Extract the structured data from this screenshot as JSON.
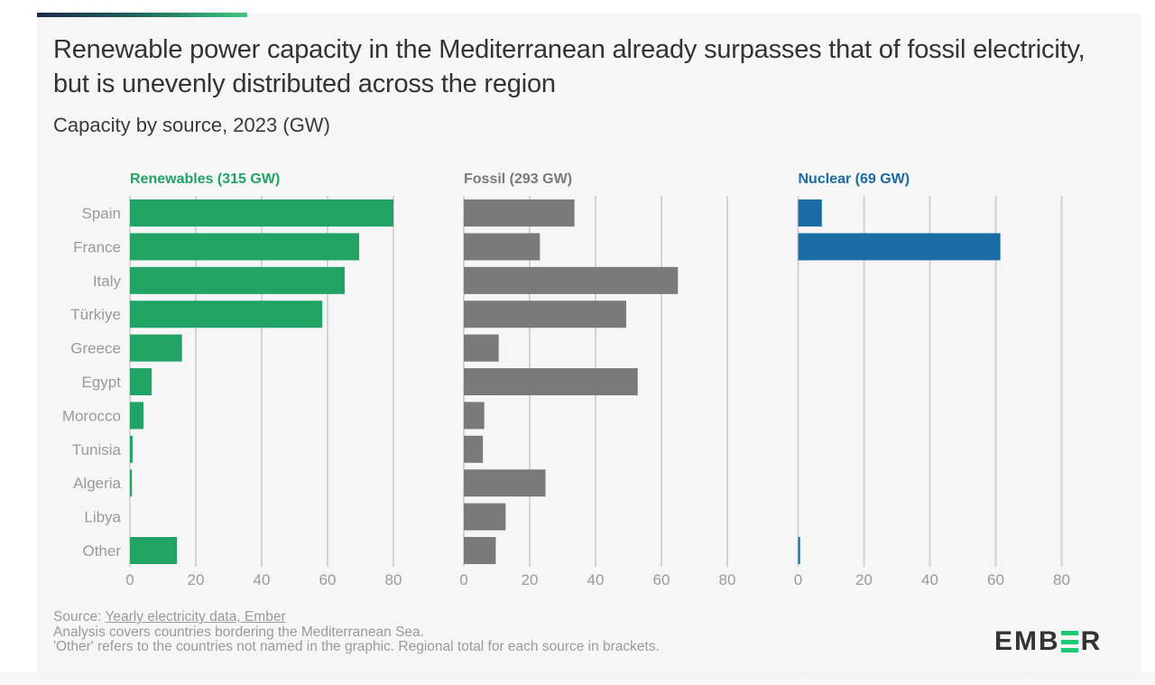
{
  "title": "Renewable power capacity in the Mediterranean already surpasses that of fossil electricity, but is unevenly distributed across the region",
  "subtitle": "Capacity by source, 2023 (GW)",
  "footer": {
    "source_prefix": "Source: ",
    "source_link": "Yearly electricity data, Ember",
    "note1": "Analysis covers countries bordering the Mediterranean Sea.",
    "note2": "'Other' refers to the countries not named in the graphic. Regional total for each source in brackets."
  },
  "logo": {
    "left": "EMB",
    "right": "R"
  },
  "colors": {
    "renewables": "#21a366",
    "fossil": "#7a7a7a",
    "nuclear": "#1a6ca4",
    "grid": "#d3d3d3",
    "label": "#9a9a9a"
  },
  "chart_data": {
    "type": "bar",
    "orientation": "horizontal",
    "title": "Renewable power capacity in the Mediterranean already surpasses that of fossil electricity, but is unevenly distributed across the region",
    "subtitle": "Capacity by source, 2023 (GW)",
    "categories": [
      "Spain",
      "France",
      "Italy",
      "Türkiye",
      "Greece",
      "Egypt",
      "Morocco",
      "Tunisia",
      "Algeria",
      "Libya",
      "Other"
    ],
    "xlim": [
      0,
      80
    ],
    "xticks": [
      0,
      20,
      40,
      60,
      80
    ],
    "grid": true,
    "series": [
      {
        "name": "Renewables (315 GW)",
        "color": "#21a366",
        "values": [
          80.0,
          69.6,
          65.2,
          58.4,
          15.8,
          6.6,
          4.1,
          0.8,
          0.6,
          0.0,
          14.3
        ]
      },
      {
        "name": "Fossil (293 GW)",
        "color": "#7a7a7a",
        "values": [
          33.6,
          23.1,
          65.0,
          49.3,
          10.6,
          52.8,
          6.2,
          5.8,
          24.8,
          12.7,
          9.7
        ]
      },
      {
        "name": "Nuclear (69 GW)",
        "color": "#1a6ca4",
        "values": [
          7.2,
          61.4,
          0,
          0,
          0,
          0,
          0,
          0,
          0,
          0,
          0.6
        ]
      }
    ]
  }
}
